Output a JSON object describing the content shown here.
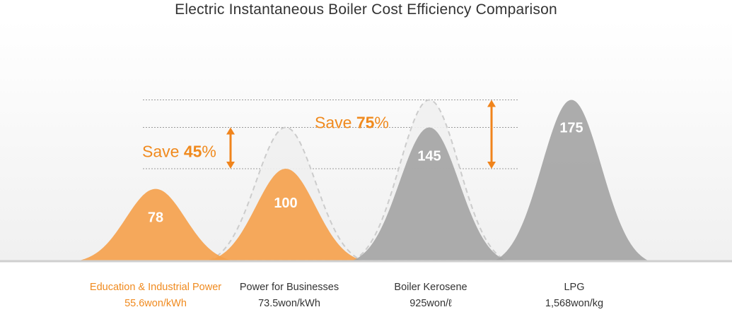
{
  "chart_data": {
    "type": "area",
    "title": "Electric Instantaneous Boiler Cost Efficiency Comparison",
    "categories": [
      {
        "name": "Education & Industrial Power",
        "rate": "55.6won/kWh",
        "value": 78
      },
      {
        "name": "Power for Businesses",
        "rate": "73.5won/kWh",
        "value": 100
      },
      {
        "name": "Boiler Kerosene",
        "rate": "925won/ℓ",
        "value": 145
      },
      {
        "name": "LPG",
        "rate": "1,568won/kg",
        "value": 175
      }
    ],
    "annotations": [
      {
        "prefix": "Save ",
        "value": "45",
        "suffix": "%",
        "from": 100,
        "to": 145
      },
      {
        "prefix": "Save ",
        "value": "75",
        "suffix": "%",
        "from": 100,
        "to": 175
      }
    ],
    "ghost_peaks": [
      145,
      175
    ],
    "colors": {
      "orange": "#f5a04a",
      "gray": "#a3a3a3",
      "orange_label": "#f08a1e",
      "arrow": "#f0841c",
      "dark_label": "#333333",
      "ghost_fill": "#f0f0f0",
      "ghost_stroke": "#cccccc"
    }
  }
}
